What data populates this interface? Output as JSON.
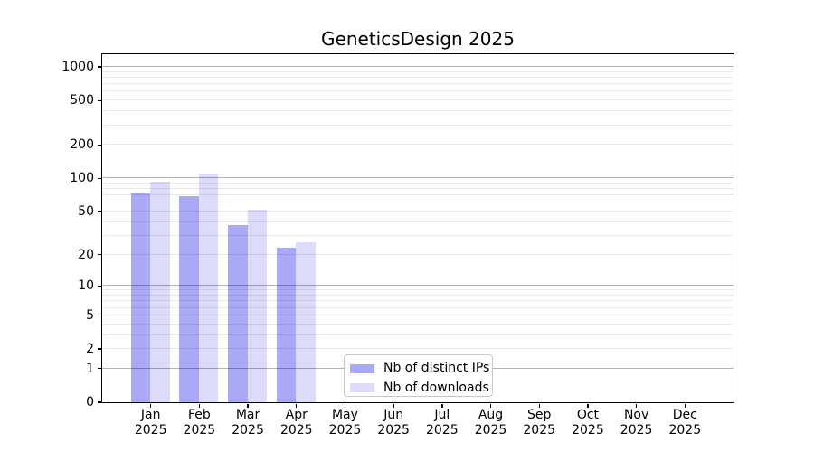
{
  "chart_data": {
    "type": "bar",
    "title": "GeneticsDesign 2025",
    "categories": [
      {
        "month": "Jan",
        "year": "2025"
      },
      {
        "month": "Feb",
        "year": "2025"
      },
      {
        "month": "Mar",
        "year": "2025"
      },
      {
        "month": "Apr",
        "year": "2025"
      },
      {
        "month": "May",
        "year": "2025"
      },
      {
        "month": "Jun",
        "year": "2025"
      },
      {
        "month": "Jul",
        "year": "2025"
      },
      {
        "month": "Aug",
        "year": "2025"
      },
      {
        "month": "Sep",
        "year": "2025"
      },
      {
        "month": "Oct",
        "year": "2025"
      },
      {
        "month": "Nov",
        "year": "2025"
      },
      {
        "month": "Dec",
        "year": "2025"
      }
    ],
    "series": [
      {
        "name": "Nb of distinct IPs",
        "color": "#a9a9f8",
        "values": [
          72,
          68,
          37,
          23,
          0,
          0,
          0,
          0,
          0,
          0,
          0,
          0
        ]
      },
      {
        "name": "Nb of downloads",
        "color": "#dcdcfa",
        "values": [
          92,
          110,
          51,
          26,
          0,
          0,
          0,
          0,
          0,
          0,
          0,
          0
        ]
      }
    ],
    "y_axis": {
      "scale": "log10(1+y)",
      "ylim": [
        0,
        1300
      ],
      "tick_values": [
        0,
        1,
        2,
        5,
        10,
        20,
        50,
        100,
        200,
        500,
        1000
      ],
      "major_grid_values": [
        1,
        10,
        100,
        1000
      ],
      "minor_grid_values": [
        2,
        3,
        4,
        5,
        6,
        7,
        8,
        9,
        20,
        30,
        40,
        50,
        60,
        70,
        80,
        90,
        200,
        300,
        400,
        500,
        600,
        700,
        800,
        900
      ]
    },
    "x_axis": {
      "xlim": [
        -1,
        12
      ]
    },
    "grid": true,
    "legend": {
      "position": "lower center"
    },
    "colors": {
      "distinct_ips_bar": "#a9a9f8",
      "downloads_bar": "#dcdcfa",
      "spine": "#000000",
      "background": "#ffffff"
    }
  }
}
